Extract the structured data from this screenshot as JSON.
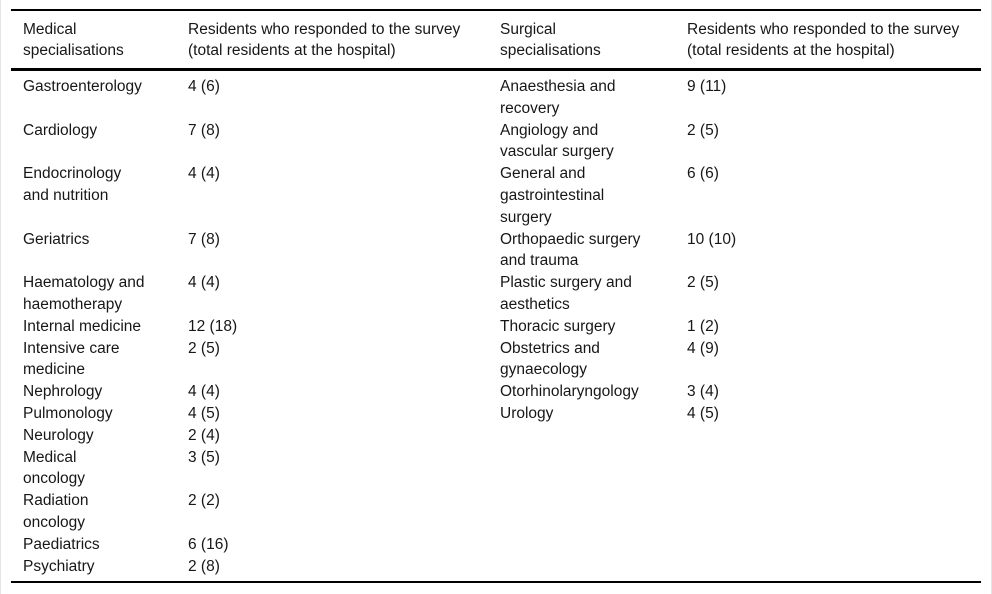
{
  "table": {
    "headers": [
      "Medical\nspecialisations",
      "Residents who responded to the survey\n(total residents at the hospital)",
      "Surgical\nspecialisations",
      "Residents who responded to the survey\n(total residents at the hospital)"
    ],
    "rows": [
      [
        "Gastroenterology",
        "4 (6)",
        "Anaesthesia and\nrecovery",
        "9 (11)"
      ],
      [
        "Cardiology",
        "7 (8)",
        "Angiology and\nvascular surgery",
        "2 (5)"
      ],
      [
        "Endocrinology\nand nutrition",
        "4 (4)",
        "General and\ngastrointestinal\nsurgery",
        "6 (6)"
      ],
      [
        "Geriatrics",
        "7 (8)",
        "Orthopaedic surgery\nand trauma",
        "10 (10)"
      ],
      [
        "Haematology and\nhaemotherapy",
        "4 (4)",
        "Plastic surgery and\naesthetics",
        "2 (5)"
      ],
      [
        "Internal medicine",
        "12 (18)",
        "Thoracic surgery",
        "1 (2)"
      ],
      [
        "Intensive care\nmedicine",
        "2 (5)",
        "Obstetrics and\ngynaecology",
        "4 (9)"
      ],
      [
        "Nephrology",
        "4 (4)",
        "Otorhinolaryngology",
        "3 (4)"
      ],
      [
        "Pulmonology",
        "4 (5)",
        "Urology",
        "4 (5)"
      ],
      [
        "Neurology",
        "2 (4)",
        "",
        ""
      ],
      [
        "Medical\noncology",
        "3 (5)",
        "",
        ""
      ],
      [
        "Radiation\noncology",
        "2 (2)",
        "",
        ""
      ],
      [
        "Paediatrics",
        "6 (16)",
        "",
        ""
      ],
      [
        "Psychiatry",
        "2 (8)",
        "",
        ""
      ]
    ],
    "colors": {
      "text": "#171717",
      "rule": "#000000",
      "page_edge": "#e4e4e4"
    }
  }
}
